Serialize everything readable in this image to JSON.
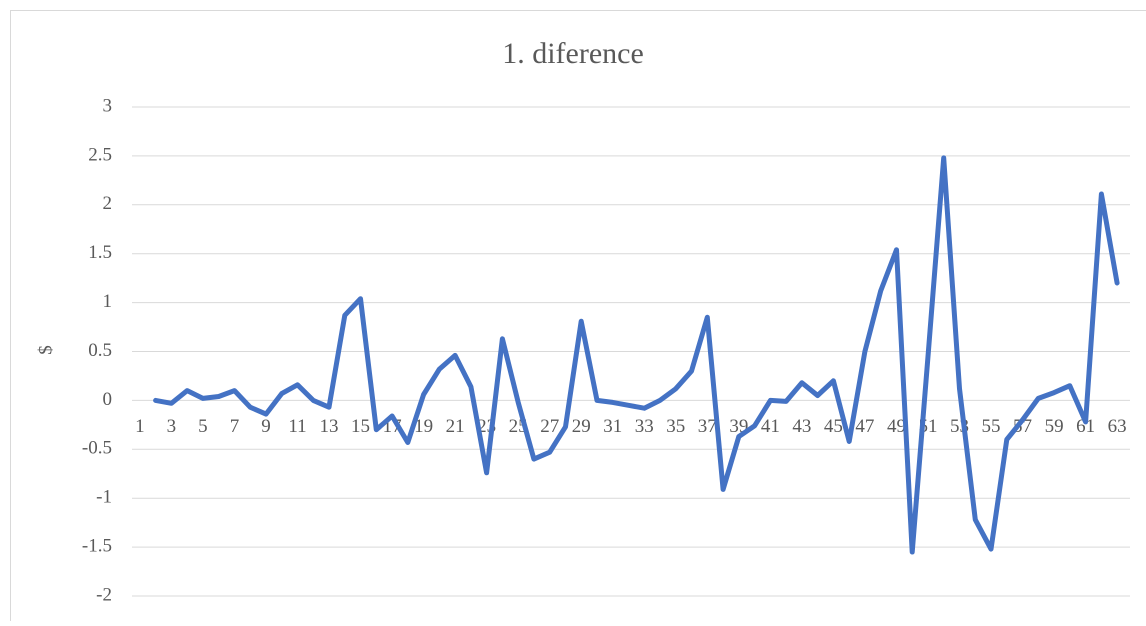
{
  "chart_data": {
    "type": "line",
    "title": "1. diference",
    "y_label": "$",
    "categories": [
      1,
      null,
      3,
      null,
      5,
      null,
      7,
      null,
      9,
      null,
      11,
      null,
      13,
      null,
      15,
      null,
      17,
      null,
      19,
      null,
      21,
      null,
      23,
      null,
      25,
      null,
      27,
      null,
      29,
      null,
      31,
      null,
      33,
      null,
      35,
      null,
      37,
      null,
      39,
      null,
      41,
      null,
      43,
      null,
      45,
      null,
      47,
      null,
      49,
      null,
      51,
      null,
      53,
      null,
      55,
      null,
      57,
      null,
      59,
      null,
      61,
      null,
      63
    ],
    "series": [
      {
        "name": "1. diference",
        "color": "#4472c4",
        "values": [
          null,
          0.0,
          -0.03,
          0.1,
          0.02,
          0.04,
          0.1,
          -0.07,
          -0.14,
          0.07,
          0.16,
          0.0,
          -0.07,
          0.87,
          1.04,
          -0.3,
          -0.16,
          -0.43,
          0.06,
          0.32,
          0.46,
          0.14,
          -0.74,
          0.63,
          -0.02,
          -0.6,
          -0.53,
          -0.27,
          0.81,
          0.0,
          -0.02,
          -0.05,
          -0.08,
          0.0,
          0.12,
          0.3,
          0.85,
          -0.91,
          -0.37,
          -0.26,
          0.0,
          -0.01,
          0.18,
          0.05,
          0.2,
          -0.42,
          0.5,
          1.12,
          1.54,
          -1.55,
          0.45,
          2.48,
          0.12,
          -1.22,
          -1.52,
          -0.4,
          -0.2,
          0.02,
          0.08,
          0.15,
          -0.22,
          2.11,
          1.2
        ]
      }
    ],
    "ylim": [
      -2,
      3
    ],
    "yticks": [
      -2,
      -1.5,
      -1,
      -0.5,
      0,
      0.5,
      1,
      1.5,
      2,
      2.5,
      3
    ],
    "grid": true
  }
}
